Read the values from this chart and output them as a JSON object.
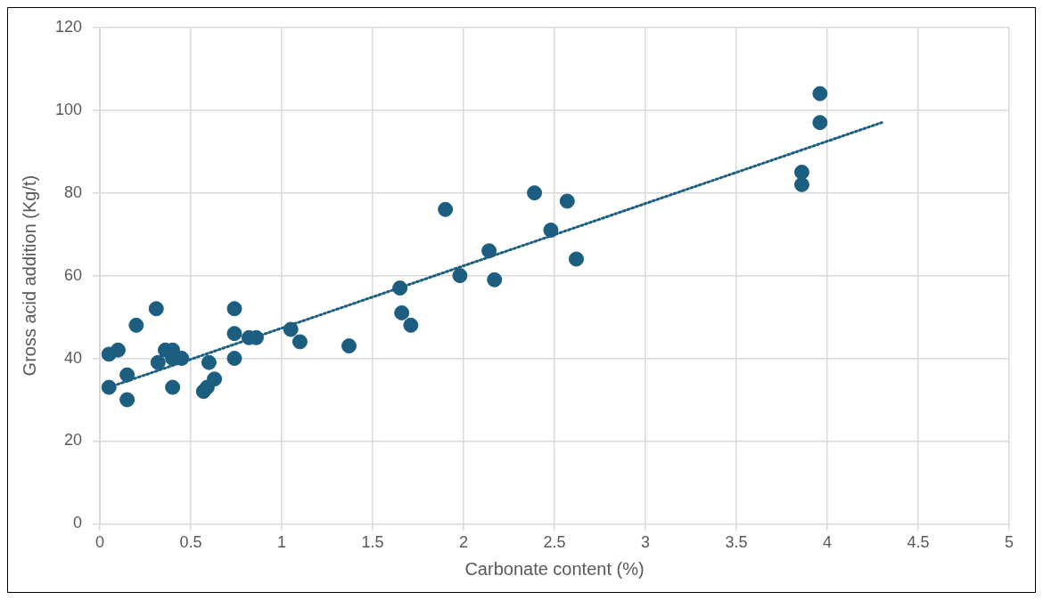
{
  "chart_data": {
    "type": "scatter",
    "xlabel": "Carbonate content (%)",
    "ylabel": "Gross acid addition (Kg/t)",
    "xlim": [
      0,
      5
    ],
    "xticks": [
      0,
      0.5,
      1,
      1.5,
      2,
      2.5,
      3,
      3.5,
      4,
      4.5,
      5
    ],
    "ylim": [
      0,
      120
    ],
    "yticks": [
      0,
      20,
      40,
      60,
      80,
      100,
      120
    ],
    "grid": true,
    "marker": "circle",
    "series": [
      {
        "color": "#1b5e80",
        "x": [
          0.05,
          0.05,
          0.1,
          0.15,
          0.15,
          0.2,
          0.31,
          0.32,
          0.36,
          0.4,
          0.4,
          0.4,
          0.45,
          0.57,
          0.59,
          0.6,
          0.63,
          0.74,
          0.74,
          0.74,
          0.82,
          0.86,
          1.05,
          1.1,
          1.37,
          1.65,
          1.66,
          1.71,
          1.9,
          1.98,
          2.14,
          2.17,
          2.39,
          2.48,
          2.57,
          2.62,
          3.86,
          3.86,
          3.96,
          3.96
        ],
        "values": [
          33,
          41,
          42,
          36,
          30,
          48,
          52,
          39,
          42,
          42,
          40,
          33,
          40,
          32,
          33,
          39,
          35,
          52,
          46,
          40,
          45,
          45,
          47,
          44,
          43,
          57,
          51,
          48,
          76,
          60,
          66,
          59,
          80,
          71,
          78,
          64,
          85,
          82,
          104,
          97
        ]
      },
      {
        "type": "line",
        "color": "#1b5e80",
        "line_style": "dotted",
        "marker": "none",
        "x": [
          0.05,
          4.3
        ],
        "values": [
          33,
          97
        ]
      }
    ]
  }
}
